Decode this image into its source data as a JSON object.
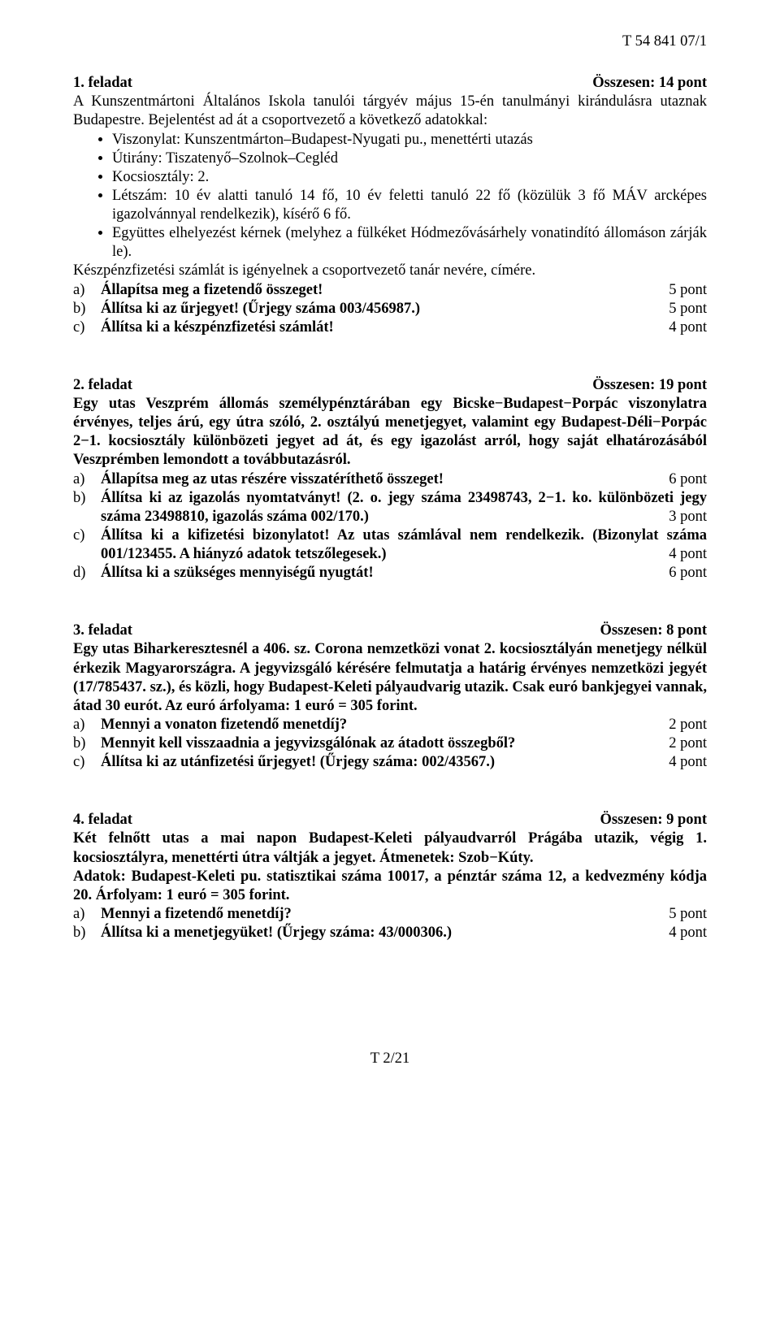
{
  "header": {
    "doc_id": "T 54 841 07/1"
  },
  "task1": {
    "title": "1. feladat",
    "points": "Összesen: 14 pont",
    "intro_part1": "A Kunszentmártoni Általános Iskola tanulói tárgyév május 15-én tanulmányi kirándulásra utaznak Budapestre. Bejelentést ad át a csoportvezető a következő adatokkal:",
    "bullets": [
      "Viszonylat: Kunszentmárton–Budapest-Nyugati pu., menettérti utazás",
      "Útirány: Tiszatenyő–Szolnok–Cegléd",
      "Kocsiosztály: 2.",
      "Létszám: 10 év alatti tanuló 14 fő, 10 év feletti tanuló 22 fő (közülük 3 fő MÁV arcképes igazolvánnyal rendelkezik), kísérő 6 fő.",
      "Együttes elhelyezést kérnek (melyhez a fülkéket Hódmezővásárhely vonatindító állomáson zárják le)."
    ],
    "after_bullets": "Készpénzfizetési számlát is igényelnek a csoportvezető tanár nevére, címére.",
    "a_letter": "a)",
    "a_text": "Állapítsa meg a fizetendő összeget!",
    "a_pts": "5 pont",
    "b_letter": "b)",
    "b_text": "Állítsa ki az űrjegyet! (Űrjegy száma 003/456987.)",
    "b_pts": "5 pont",
    "c_letter": "c)",
    "c_text": "Állítsa ki a készpénzfizetési számlát!",
    "c_pts": "4 pont"
  },
  "task2": {
    "title": "2. feladat",
    "points": "Összesen: 19 pont",
    "intro": "Egy utas Veszprém állomás személypénztárában egy Bicske−Budapest−Porpác viszonylatra érvényes, teljes árú, egy útra szóló, 2. osztályú menetjegyet, valamint egy Budapest-Déli−Porpác 2−1. kocsiosztály különbözeti jegyet ad át, és egy igazolást arról, hogy saját elhatározásából Veszprémben lemondott a továbbutazásról.",
    "a_letter": "a)",
    "a_text": "Állapítsa meg az utas részére visszatéríthető összeget!",
    "a_pts": "6 pont",
    "b_letter": "b)",
    "b_text_full": "Állítsa ki az igazolás nyomtatványt! (2. o. jegy száma 23498743, 2−1. ko. különbözeti jegy száma 23498810, igazolás száma 002/170.)",
    "b_pts": "3 pont",
    "c_letter": "c)",
    "c_text_full": "Állítsa ki a kifizetési bizonylatot! Az utas számlával nem rendelkezik. (Bizonylat száma 001/123455. A hiányzó adatok tetszőlegesek.)",
    "c_pts": "4 pont",
    "d_letter": "d)",
    "d_text": "Állítsa ki a szükséges mennyiségű nyugtát!",
    "d_pts": "6 pont"
  },
  "task3": {
    "title": "3. feladat",
    "points": "Összesen: 8 pont",
    "intro": "Egy utas Biharkeresztesnél a 406. sz. Corona nemzetközi vonat 2. kocsiosztályán menetjegy nélkül érkezik Magyarországra. A jegyvizsgáló kérésére felmutatja a határig érvényes nemzetközi jegyét (17/785437. sz.), és közli, hogy Budapest-Keleti pályaudvarig utazik. Csak euró bankjegyei vannak, átad 30 eurót. Az euró árfolyama: 1 euró = 305 forint.",
    "a_letter": "a)",
    "a_text": "Mennyi a vonaton fizetendő menetdíj?",
    "a_pts": "2 pont",
    "b_letter": "b)",
    "b_text": "Mennyit kell visszaadnia a jegyvizsgálónak az átadott összegből?",
    "b_pts": "2 pont",
    "c_letter": "c)",
    "c_text": "Állítsa ki az utánfizetési űrjegyet! (Űrjegy száma: 002/43567.)",
    "c_pts": "4 pont"
  },
  "task4": {
    "title": "4. feladat",
    "points": "Összesen: 9 pont",
    "intro_line1": "Két felnőtt utas a mai napon Budapest-Keleti pályaudvarról Prágába utazik, végig 1. kocsiosztályra, menettérti útra váltják a jegyet. Átmenetek: Szob−Kúty.",
    "intro_line2": "Adatok: Budapest-Keleti pu. statisztikai száma 10017, a pénztár száma 12, a kedvezmény kódja 20. Árfolyam: 1 euró = 305 forint.",
    "a_letter": "a)",
    "a_text": "Mennyi a fizetendő menetdíj?",
    "a_pts": "5 pont",
    "b_letter": "b)",
    "b_text": "Állítsa ki a menetjegyüket! (Űrjegy száma: 43/000306.)",
    "b_pts": "4 pont"
  },
  "footer": {
    "page": "T 2/21"
  }
}
